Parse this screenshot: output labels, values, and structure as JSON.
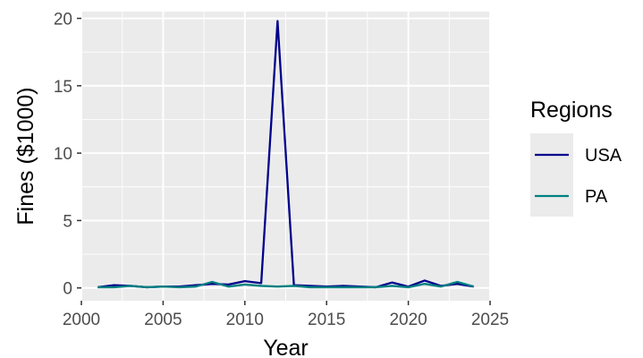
{
  "chart_data": {
    "type": "line",
    "title": "",
    "xlabel": "Year",
    "ylabel": "Fines ($1000)",
    "xlim": [
      2000,
      2025
    ],
    "ylim": [
      -0.95,
      20.5
    ],
    "xticks": [
      2000,
      2005,
      2010,
      2015,
      2020,
      2025
    ],
    "yticks": [
      0,
      5,
      10,
      15,
      20
    ],
    "grid": true,
    "legend": {
      "title": "Regions",
      "placement": "right"
    },
    "x": [
      2001,
      2002,
      2003,
      2004,
      2005,
      2006,
      2007,
      2008,
      2009,
      2010,
      2011,
      2012,
      2013,
      2014,
      2015,
      2016,
      2017,
      2018,
      2019,
      2020,
      2021,
      2022,
      2023,
      2024
    ],
    "series": [
      {
        "name": "USA",
        "color": "#00008B",
        "values": [
          0.05,
          0.2,
          0.15,
          0.05,
          0.1,
          0.1,
          0.2,
          0.3,
          0.25,
          0.5,
          0.35,
          19.8,
          0.2,
          0.15,
          0.1,
          0.15,
          0.1,
          0.05,
          0.4,
          0.1,
          0.55,
          0.15,
          0.3,
          0.1
        ]
      },
      {
        "name": "PA",
        "color": "#008080",
        "values": [
          0.05,
          0.05,
          0.15,
          0.05,
          0.1,
          0.05,
          0.1,
          0.45,
          0.1,
          0.25,
          0.15,
          0.1,
          0.15,
          0.05,
          0.05,
          0.05,
          0.05,
          0.05,
          0.15,
          0.05,
          0.3,
          0.1,
          0.45,
          0.1
        ]
      }
    ]
  }
}
